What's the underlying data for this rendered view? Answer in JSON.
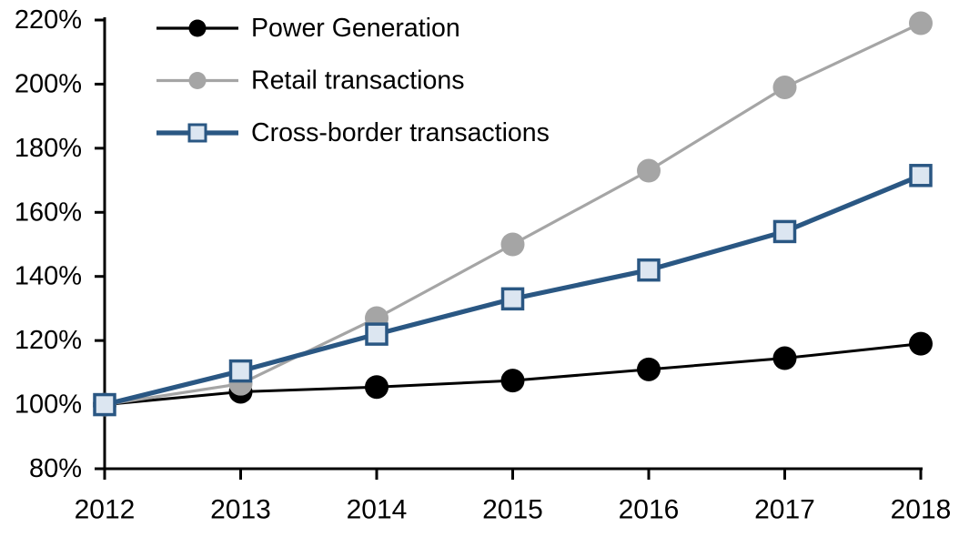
{
  "chart_data": {
    "type": "line",
    "title": "",
    "xlabel": "",
    "ylabel": "",
    "categories": [
      "2012",
      "2013",
      "2014",
      "2015",
      "2016",
      "2017",
      "2018"
    ],
    "y_axis": {
      "min": 80,
      "max": 220,
      "step": 20,
      "suffix": "%",
      "tick_labels": [
        "80%",
        "100%",
        "120%",
        "140%",
        "160%",
        "180%",
        "200%",
        "220%"
      ]
    },
    "grid": false,
    "legend_position": "top-left",
    "series": [
      {
        "name": "Power Generation",
        "marker": "circle",
        "color": "#000000",
        "marker_fill": "#000000",
        "line_width": 3,
        "values": [
          100,
          104,
          105.5,
          107.5,
          111,
          114.5,
          119
        ]
      },
      {
        "name": "Retail transactions",
        "marker": "circle",
        "color": "#A5A5A5",
        "marker_fill": "#A5A5A5",
        "line_width": 3.2,
        "values": [
          100,
          106.5,
          127,
          150,
          173,
          199,
          219
        ]
      },
      {
        "name": "Cross-border transactions",
        "marker": "square",
        "color": "#2A5783",
        "marker_fill": "#DCE6F1",
        "line_width": 5.2,
        "values": [
          100,
          110.5,
          122,
          133,
          142,
          154,
          171.5
        ]
      }
    ]
  },
  "colors": {
    "background": "#FFFFFF",
    "axis": "#000000",
    "text": "#000000"
  }
}
